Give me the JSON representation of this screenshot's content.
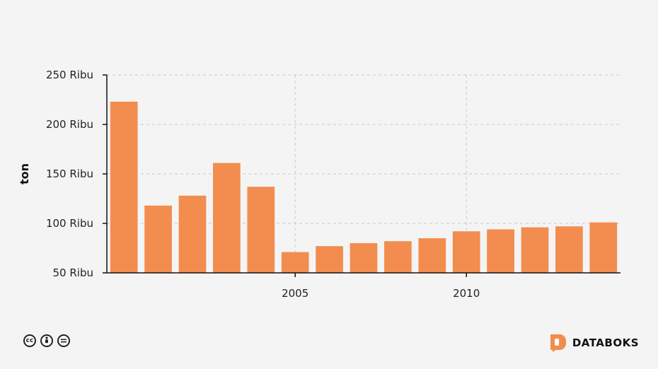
{
  "chart_data": {
    "type": "bar",
    "x": [
      2000,
      2001,
      2002,
      2003,
      2004,
      2005,
      2006,
      2007,
      2008,
      2009,
      2010,
      2011,
      2012,
      2013,
      2014
    ],
    "values": [
      223,
      118,
      128,
      161,
      137,
      71,
      77,
      80,
      82,
      85,
      92,
      94,
      96,
      97,
      101
    ],
    "value_unit": "Ribu ton",
    "ylabel": "ton",
    "ylim": [
      50,
      250
    ],
    "yticks": [
      {
        "value": 50,
        "label": "50 Ribu"
      },
      {
        "value": 100,
        "label": "100 Ribu"
      },
      {
        "value": 150,
        "label": "150 Ribu"
      },
      {
        "value": 200,
        "label": "200 Ribu"
      },
      {
        "value": 250,
        "label": "250 Ribu"
      }
    ],
    "xticks": [
      {
        "value": 2005,
        "label": "2005"
      },
      {
        "value": 2010,
        "label": "2010"
      }
    ],
    "grid": true,
    "bar_color": "#f28d4f"
  },
  "footer": {
    "license_icons": [
      "cc-icon",
      "attribution-icon",
      "no-derivatives-icon"
    ],
    "brand_name": "DATABOKS",
    "brand_color": "#f28d4f"
  }
}
